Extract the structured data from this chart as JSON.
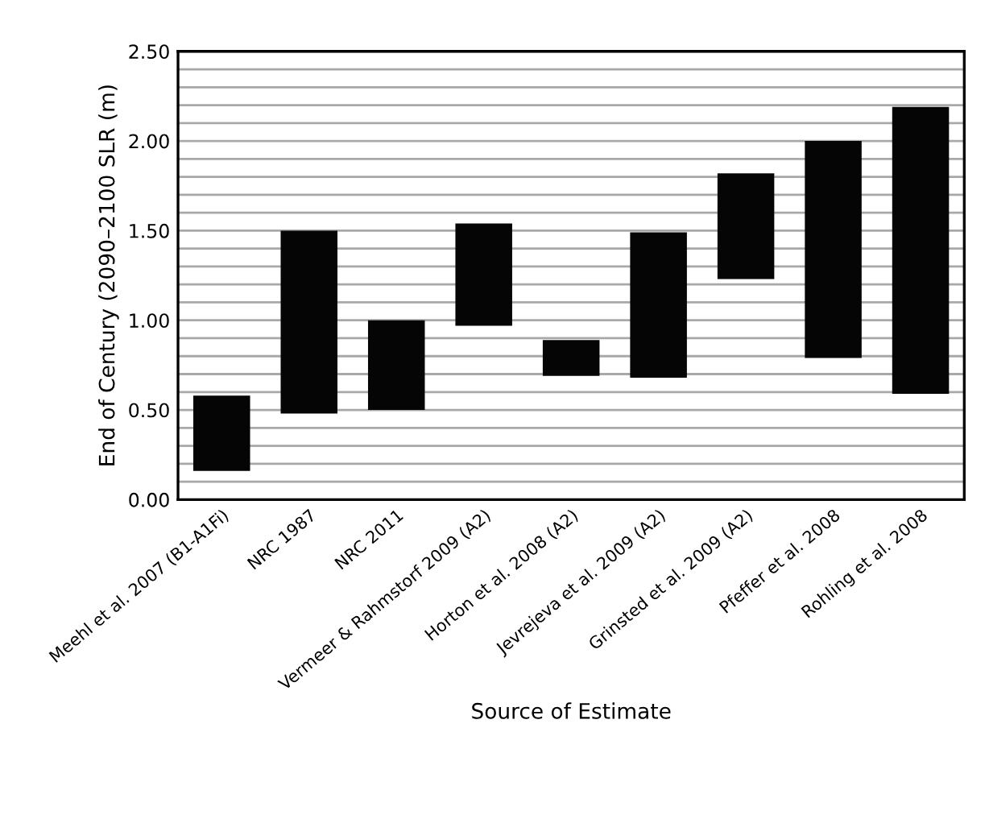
{
  "chart_data": {
    "type": "bar",
    "xlabel": "Source of Estimate",
    "ylabel": "End of Century (2090–2100 SLR (m)",
    "categories": [
      "Meehl et al. 2007 (B1-A1Fi)",
      "NRC 1987",
      "NRC 2011",
      "Vermeer & Rahmstorf 2009 (A2)",
      "Horton et al. 2008 (A2)",
      "Jevrejeva et al. 2009 (A2)",
      "Grinsted et al. 2009 (A2)",
      "Pfeffer et al. 2008",
      "Rohling et al. 2008"
    ],
    "base": [
      0.16,
      0.48,
      0.5,
      0.97,
      0.69,
      0.68,
      1.23,
      0.79,
      0.59
    ],
    "values": [
      0.42,
      1.02,
      0.5,
      0.57,
      0.2,
      0.81,
      0.59,
      1.21,
      1.6
    ],
    "color": "#050505",
    "ylim": [
      0,
      2.5
    ],
    "yticks": [
      {
        "value": 0,
        "label": "0.00"
      },
      {
        "value": 0.1,
        "label": null
      },
      {
        "value": 0.2,
        "label": null
      },
      {
        "value": 0.3,
        "label": null
      },
      {
        "value": 0.4,
        "label": null
      },
      {
        "value": 0.5,
        "label": "0.50"
      },
      {
        "value": 0.6,
        "label": null
      },
      {
        "value": 0.7,
        "label": null
      },
      {
        "value": 0.8,
        "label": null
      },
      {
        "value": 0.9,
        "label": null
      },
      {
        "value": 1.0,
        "label": "1.00"
      },
      {
        "value": 1.1,
        "label": null
      },
      {
        "value": 1.2,
        "label": null
      },
      {
        "value": 1.3,
        "label": null
      },
      {
        "value": 1.4,
        "label": null
      },
      {
        "value": 1.5,
        "label": "1.50"
      },
      {
        "value": 1.6,
        "label": null
      },
      {
        "value": 1.7,
        "label": null
      },
      {
        "value": 1.8,
        "label": null
      },
      {
        "value": 1.9,
        "label": null
      },
      {
        "value": 2.0,
        "label": "2.00"
      },
      {
        "value": 2.1,
        "label": null
      },
      {
        "value": 2.2,
        "label": null
      },
      {
        "value": 2.3,
        "label": null
      },
      {
        "value": 2.4,
        "label": null
      },
      {
        "value": 2.5,
        "label": "2.50"
      }
    ],
    "grid": "y"
  }
}
